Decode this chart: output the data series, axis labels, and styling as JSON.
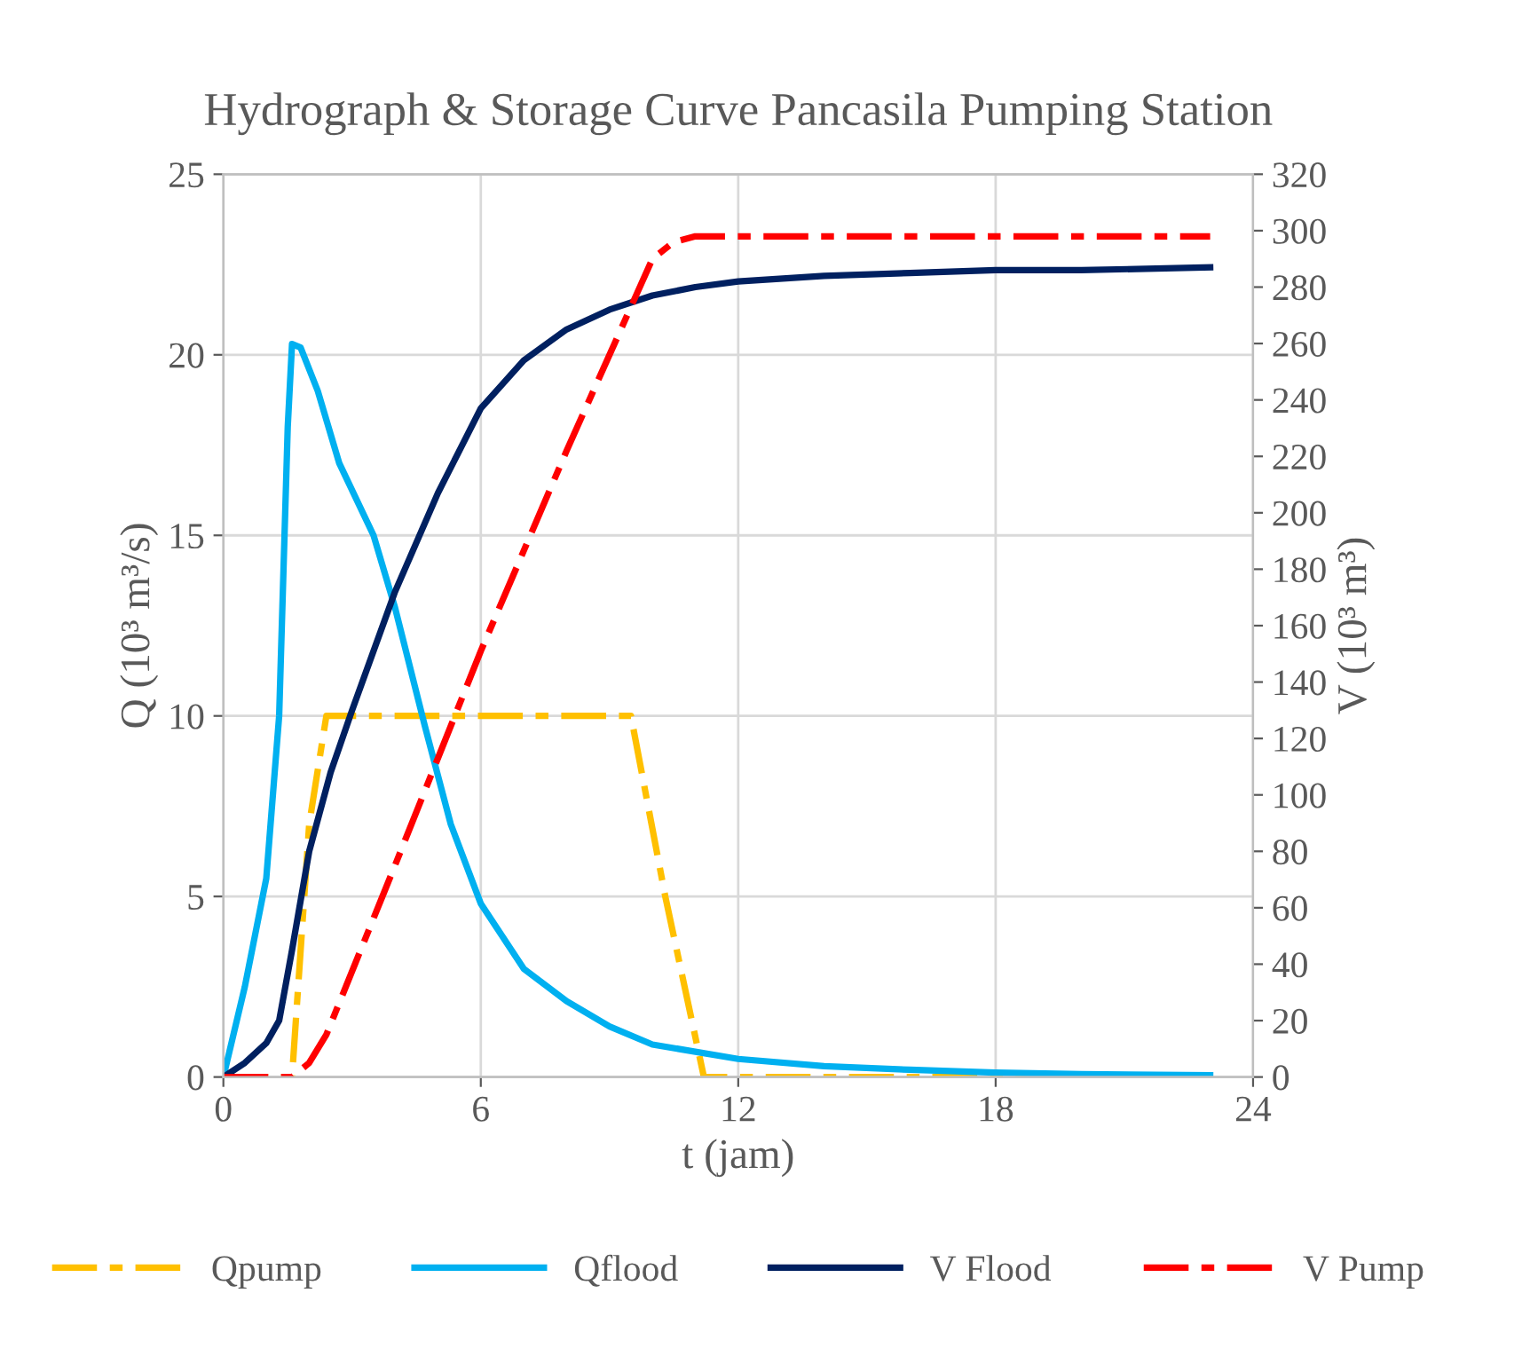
{
  "chart_data": {
    "type": "line",
    "title": "Hydrograph & Storage Curve Pancasila Pumping Station",
    "xlabel": "t (jam)",
    "ylabel": "Q (10³ m³/s)",
    "y2label": "V (10³ m³)",
    "xlim": [
      0,
      24
    ],
    "xticks": [
      0,
      6,
      12,
      18,
      24
    ],
    "ylim": [
      0,
      25
    ],
    "yticks": [
      0,
      5,
      10,
      15,
      20,
      25
    ],
    "y2lim": [
      0,
      320
    ],
    "y2ticks": [
      0,
      20,
      40,
      60,
      80,
      100,
      120,
      140,
      160,
      180,
      200,
      220,
      240,
      260,
      280,
      300,
      320
    ],
    "grid": true,
    "legend": "bottom",
    "marker": "none",
    "series": [
      {
        "name": "Qpump",
        "color": "#ffc000",
        "line_style": "dashdot",
        "x": [
          0,
          1.6,
          2.0,
          2.4,
          5,
          9.5,
          10.3,
          11.2,
          15,
          23
        ],
        "values": [
          0,
          0,
          7,
          10,
          10,
          10,
          5,
          0,
          0,
          0
        ]
      },
      {
        "name": "Qflood",
        "color": "#00b0f0",
        "line_style": "solid",
        "x": [
          0,
          0.5,
          1.0,
          1.3,
          1.5,
          1.6,
          1.8,
          2.2,
          2.7,
          3.5,
          4.0,
          4.7,
          5.3,
          6,
          7,
          8,
          9,
          10,
          12,
          14,
          16,
          18,
          20,
          23
        ],
        "values": [
          0,
          2.5,
          5.5,
          10,
          18,
          20.3,
          20.2,
          19,
          17,
          15,
          13,
          9.7,
          7,
          4.8,
          3.0,
          2.1,
          1.4,
          0.9,
          0.5,
          0.3,
          0.2,
          0.12,
          0.08,
          0.05
        ]
      },
      {
        "name": "V Flood",
        "color": "#002060",
        "line_style": "solid",
        "axis": "y2",
        "x": [
          0,
          0.5,
          1.0,
          1.3,
          1.6,
          2.0,
          2.5,
          3,
          4,
          5,
          6,
          7,
          8,
          9,
          10,
          11,
          12,
          14,
          16,
          18,
          20,
          23
        ],
        "values": [
          0,
          5,
          12,
          20,
          45,
          80,
          108,
          130,
          172,
          207,
          237,
          254,
          265,
          272,
          277,
          280,
          282,
          284,
          285,
          286,
          286,
          287
        ]
      },
      {
        "name": "V Pump",
        "color": "#ff0000",
        "line_style": "dashdot",
        "axis": "y2",
        "x": [
          0,
          1.6,
          2.0,
          2.4,
          4,
          6,
          8,
          10,
          10.5,
          11,
          14,
          18,
          23
        ],
        "values": [
          0,
          0,
          5,
          15,
          75,
          151,
          222,
          290,
          296,
          298,
          298,
          298,
          298
        ]
      }
    ]
  }
}
